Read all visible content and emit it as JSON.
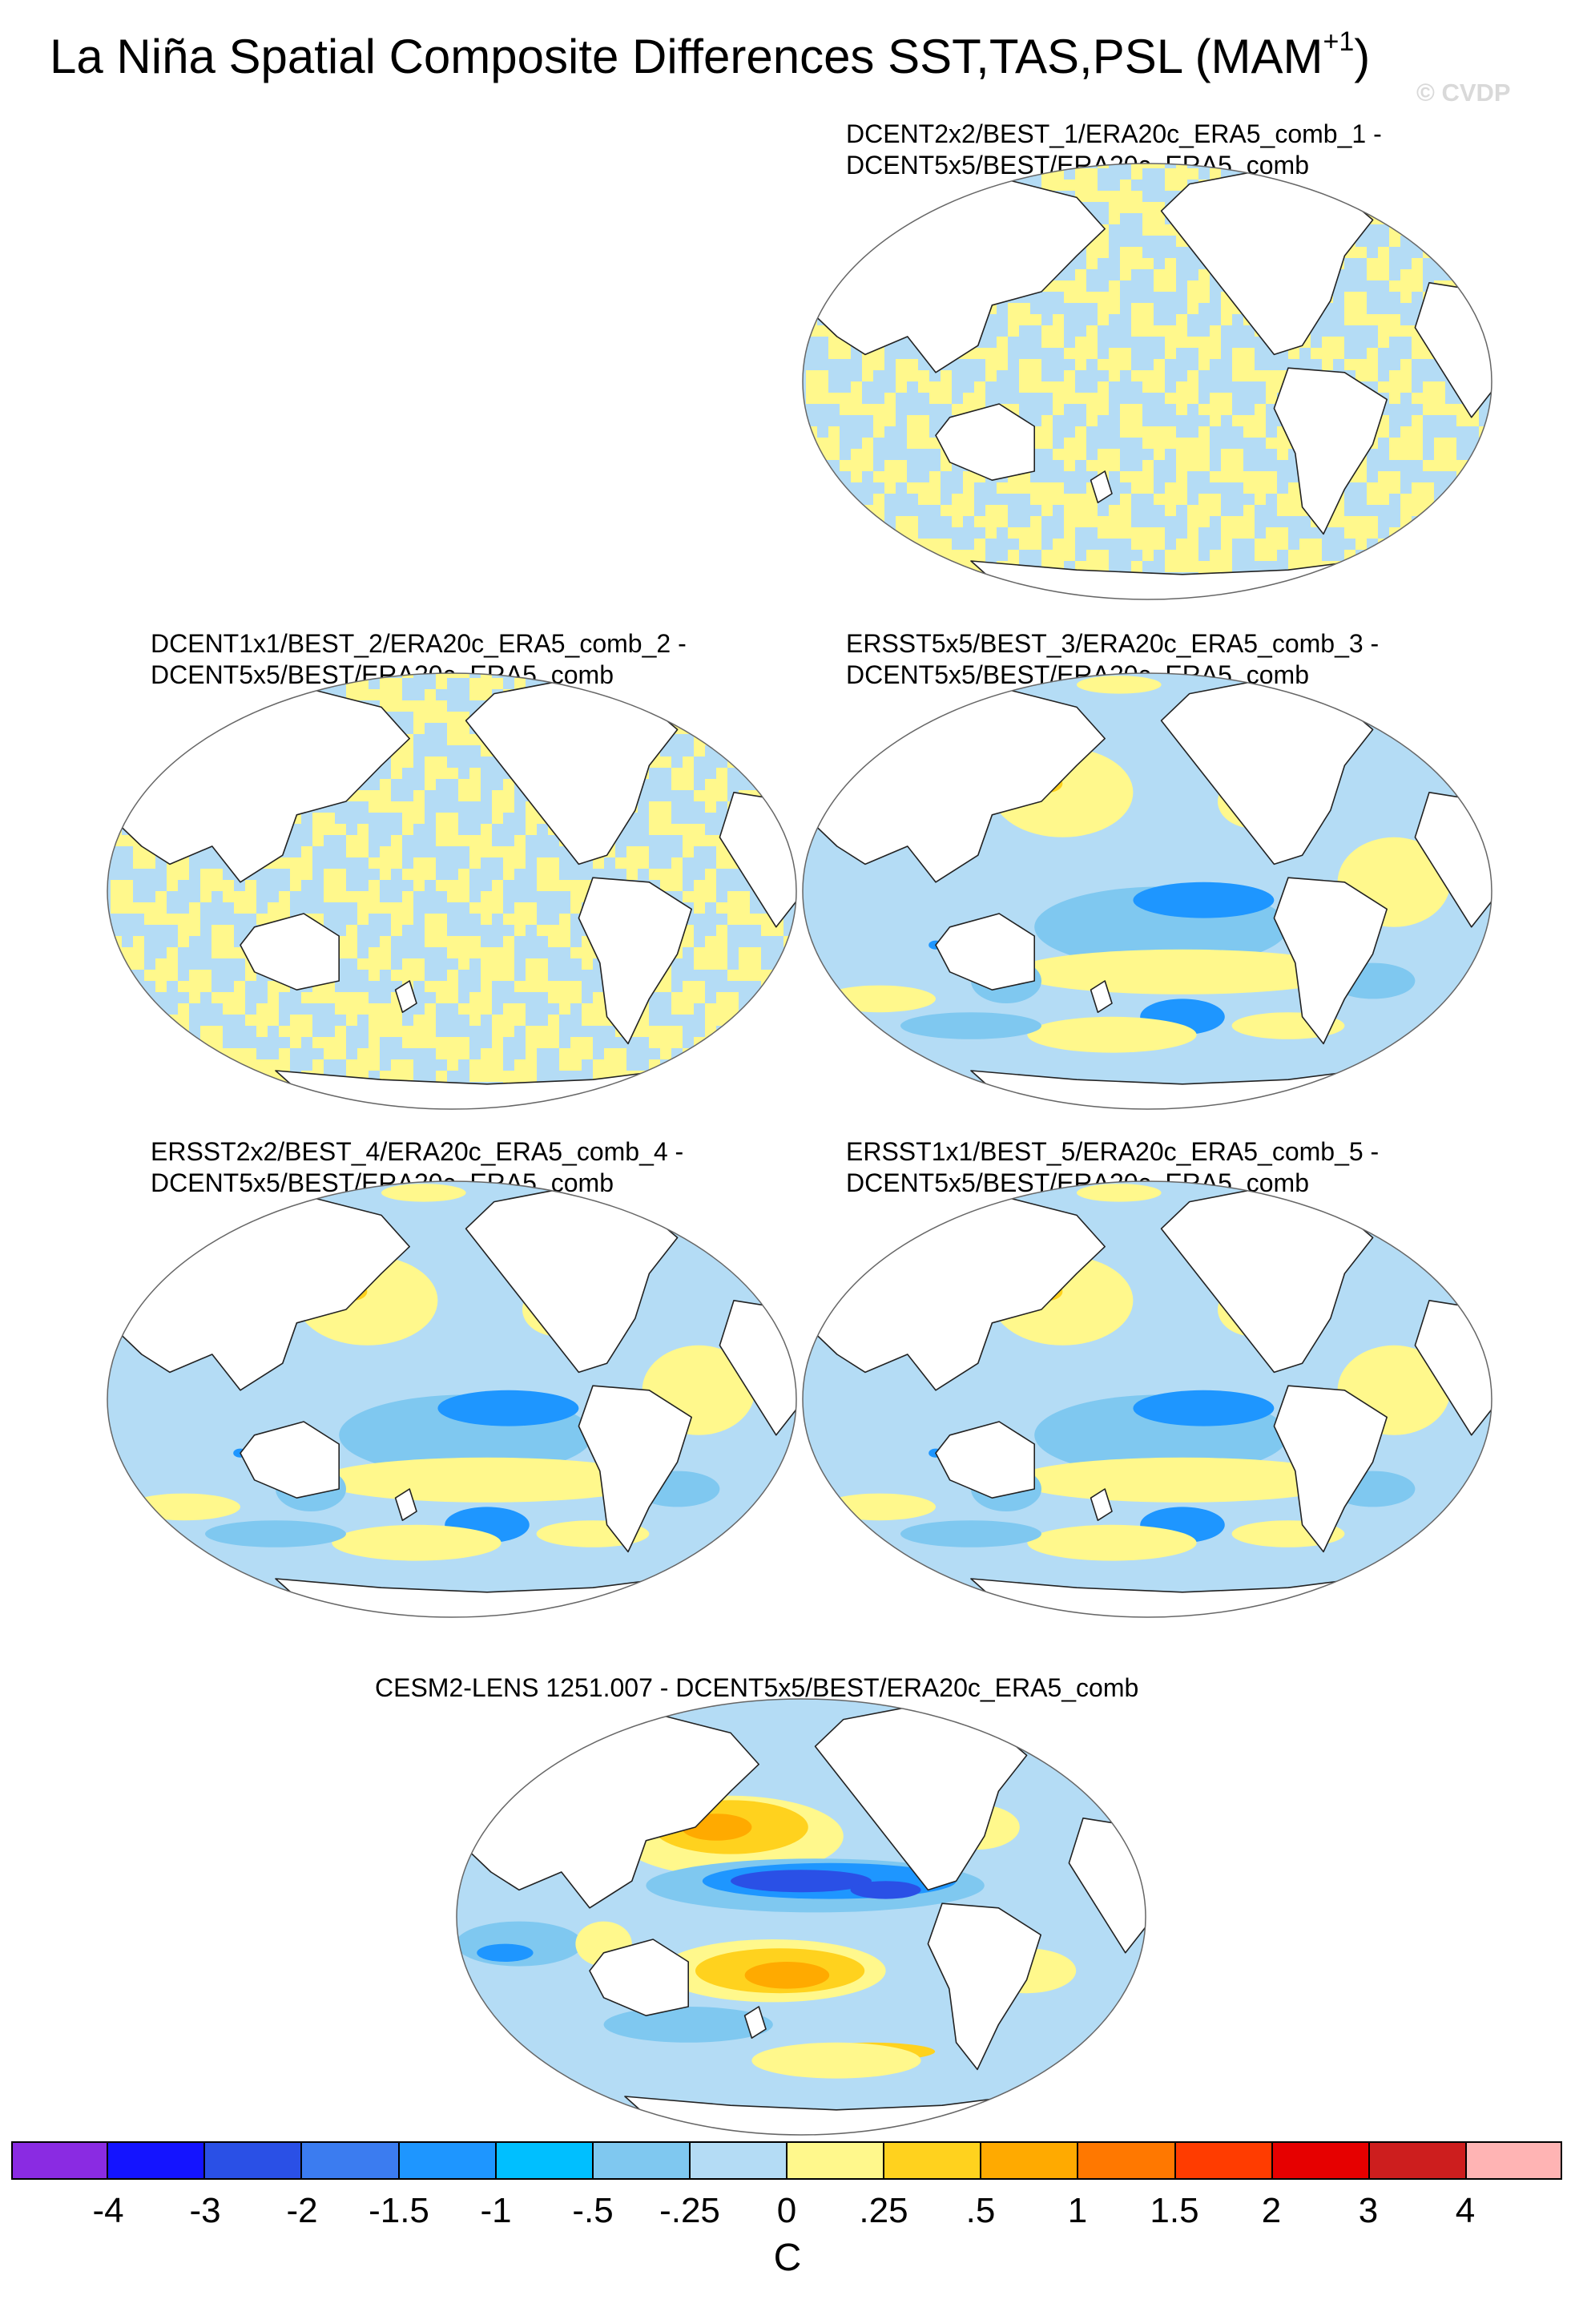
{
  "header": {
    "title": "La Niña Spatial Composite Differences SST,TAS,PSL (MAM",
    "title_sup": "+1",
    "title_close": ")",
    "watermark": "© CVDP"
  },
  "panels": [
    {
      "line1": "DCENT2x2/BEST_1/ERA20c_ERA5_comb_1 -",
      "line2": "DCENT5x5/BEST/ERA20c_ERA5_comb",
      "pattern": "checker"
    },
    {
      "line1": "DCENT1x1/BEST_2/ERA20c_ERA5_comb_2 -",
      "line2": "DCENT5x5/BEST/ERA20c_ERA5_comb",
      "pattern": "checker"
    },
    {
      "line1": "ERSST5x5/BEST_3/ERA20c_ERA5_comb_3 -",
      "line2": "DCENT5x5/BEST/ERA20c_ERA5_comb",
      "pattern": "smooth"
    },
    {
      "line1": "ERSST2x2/BEST_4/ERA20c_ERA5_comb_4 -",
      "line2": "DCENT5x5/BEST/ERA20c_ERA5_comb",
      "pattern": "smooth"
    },
    {
      "line1": "ERSST1x1/BEST_5/ERA20c_ERA5_comb_5 -",
      "line2": "DCENT5x5/BEST/ERA20c_ERA5_comb",
      "pattern": "smooth"
    },
    {
      "line1": "CESM2-LENS 1251.007 - DCENT5x5/BEST/ERA20c_ERA5_comb",
      "line2": "",
      "pattern": "model"
    }
  ],
  "colorbar": {
    "colors": [
      "#8a2be2",
      "#1414ff",
      "#2a50e6",
      "#3b7cf0",
      "#1e96ff",
      "#00bfff",
      "#7fc8f0",
      "#b4dcf5",
      "#fff88c",
      "#ffd21e",
      "#ffaa00",
      "#ff7800",
      "#ff3c00",
      "#e60000",
      "#cd1e1e",
      "#ffb4b4"
    ],
    "labels": [
      "-4",
      "-3",
      "-2",
      "-1.5",
      "-1",
      "-.5",
      "-.25",
      "0",
      ".25",
      ".5",
      "1",
      "1.5",
      "2",
      "3",
      "4"
    ],
    "unit": "C"
  }
}
